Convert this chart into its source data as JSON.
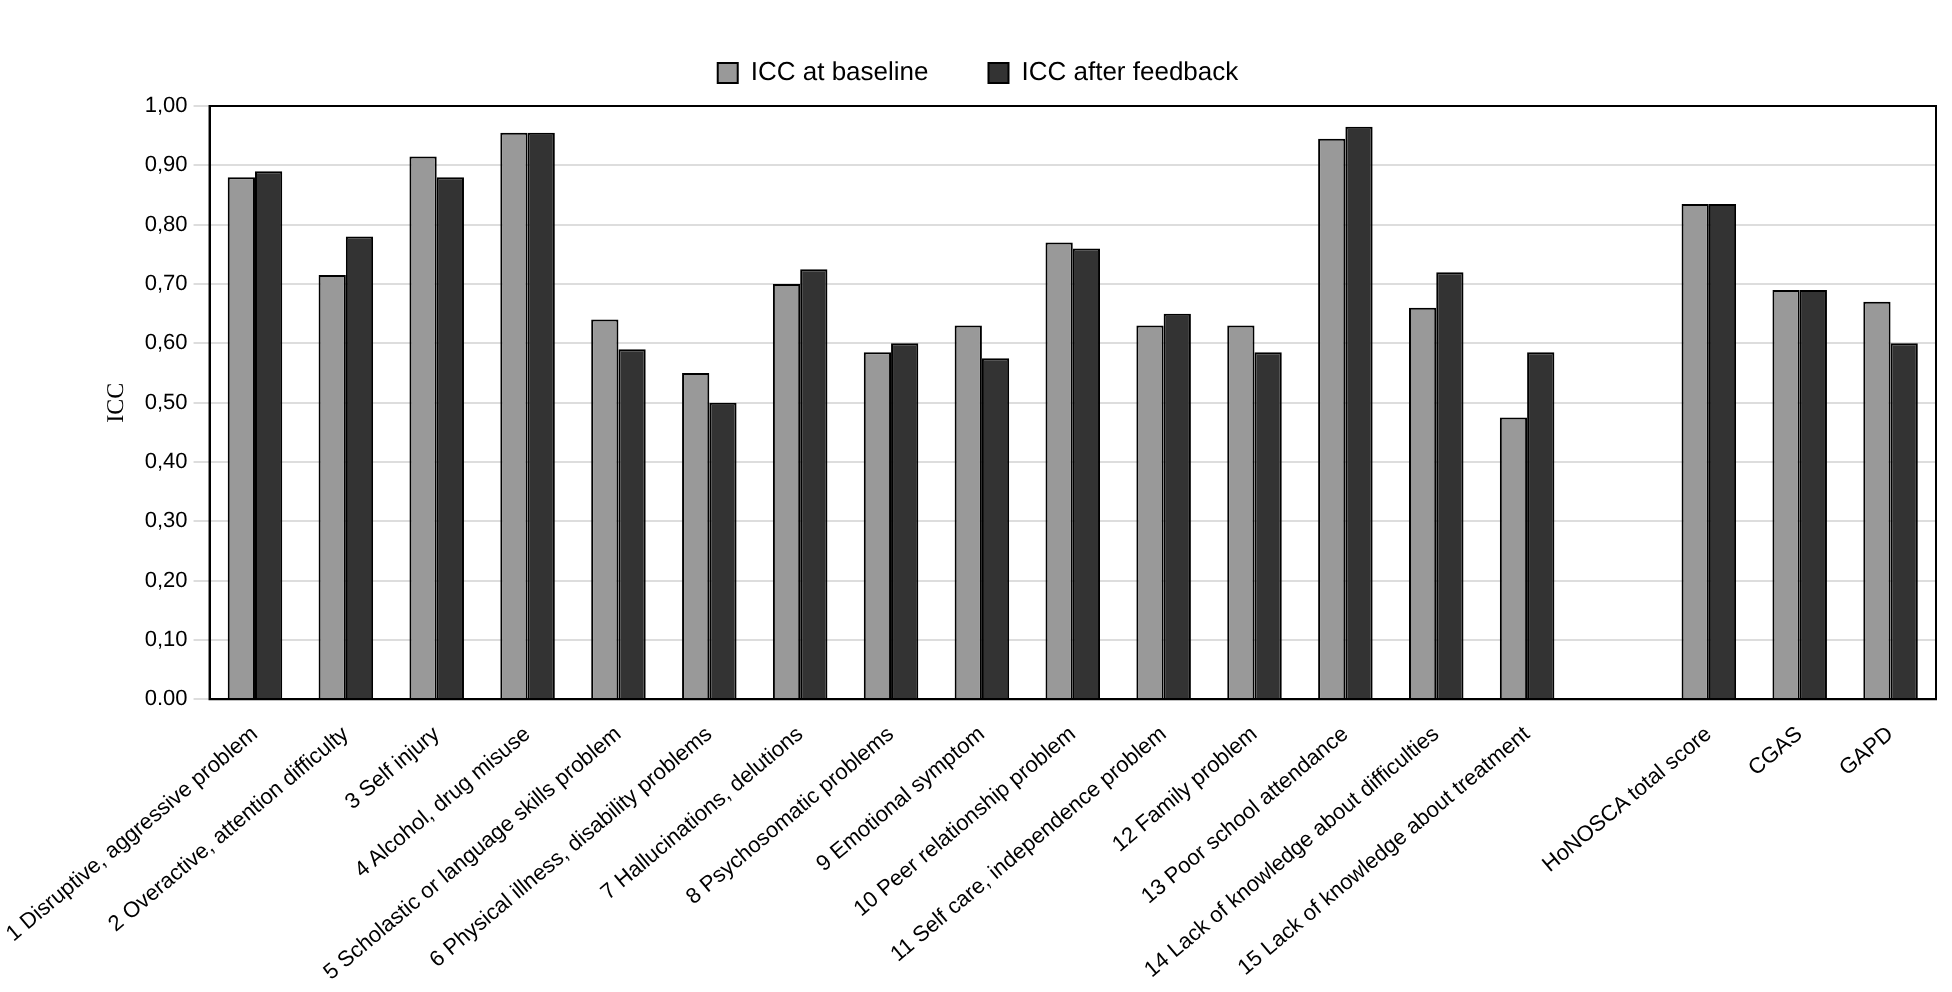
{
  "chart_data": {
    "type": "bar",
    "ylabel": "ICC",
    "categories": [
      "1 Disruptive, aggressive problem",
      "2 Overactive, attention difficulty",
      "3 Self injury",
      "4 Alcohol, drug misuse",
      "5 Scholastic or language skills problem",
      "6 Physical illness, disability problems",
      "7 Hallucinations, delutions",
      "8 Psychosomatic problems",
      "9 Emotional symptom",
      "10 Peer relationship problem",
      "11 Self care, independence problem",
      "12 Family problem",
      "13 Poor school attendance",
      "14 Lack of knowledge about difficulties",
      "15 Lack of knowledge about treatment",
      null,
      "HoNOSCA total score",
      "CGAS",
      "GAPD"
    ],
    "series": [
      {
        "name": "ICC at baseline",
        "color": "#999999",
        "values": [
          0.88,
          0.715,
          0.915,
          0.955,
          0.64,
          0.55,
          0.7,
          0.585,
          0.63,
          0.77,
          0.63,
          0.63,
          0.945,
          0.66,
          0.475,
          null,
          0.835,
          0.69,
          0.67
        ]
      },
      {
        "name": "ICC after feedback",
        "color": "#333333",
        "values": [
          0.89,
          0.78,
          0.88,
          0.955,
          0.59,
          0.5,
          0.725,
          0.6,
          0.575,
          0.76,
          0.65,
          0.585,
          0.965,
          0.72,
          0.585,
          null,
          0.835,
          0.69,
          0.6
        ]
      }
    ],
    "ylim": [
      0,
      1
    ],
    "yticks": [
      {
        "value": 0,
        "label": "0.00"
      },
      {
        "value": 0.1,
        "label": "0,10"
      },
      {
        "value": 0.2,
        "label": "0,20"
      },
      {
        "value": 0.3,
        "label": "0,30"
      },
      {
        "value": 0.4,
        "label": "0,40"
      },
      {
        "value": 0.5,
        "label": "0,50"
      },
      {
        "value": 0.6,
        "label": "0,60"
      },
      {
        "value": 0.7,
        "label": "0,70"
      },
      {
        "value": 0.8,
        "label": "0,80"
      },
      {
        "value": 0.9,
        "label": "0,90"
      },
      {
        "value": 1,
        "label": "1,00"
      }
    ],
    "grid": "y",
    "legend": "top"
  }
}
